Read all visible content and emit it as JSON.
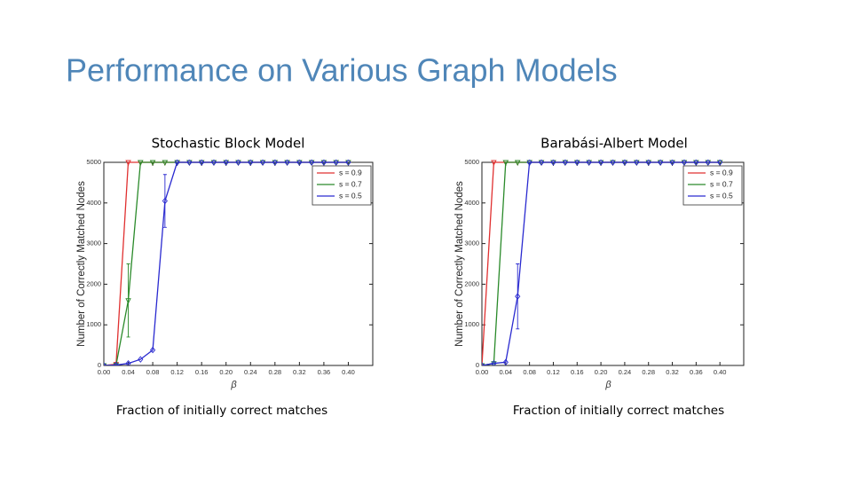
{
  "slide_title": "Performance on Various Graph Models",
  "chart_data": [
    {
      "type": "line",
      "title": "Stochastic Block Model",
      "caption": "Fraction of initially correct matches",
      "xlabel": "β",
      "ylabel": "Number of Correctly Matched Nodes",
      "x": [
        0,
        0.02,
        0.04,
        0.06,
        0.08,
        0.1,
        0.12,
        0.14,
        0.16,
        0.18,
        0.2,
        0.22,
        0.24,
        0.26,
        0.28,
        0.3,
        0.32,
        0.34,
        0.36,
        0.38,
        0.4
      ],
      "xlim": [
        0,
        0.44
      ],
      "ylim": [
        0,
        5000
      ],
      "xticks": [
        {
          "value": 0,
          "label": "0.00"
        },
        0.04,
        0.08,
        0.12,
        0.16,
        {
          "value": 0.2,
          "label": "0.20"
        },
        0.24,
        0.28,
        0.32,
        0.36,
        {
          "value": 0.4,
          "label": "0.40"
        }
      ],
      "yticks": [
        0,
        1000,
        2000,
        3000,
        4000,
        5000
      ],
      "legend": "upper right",
      "series": [
        {
          "name": "s = 0.9",
          "color": "#e03030",
          "marker": "triangle",
          "values": [
            0,
            30,
            5000,
            5000,
            5000,
            5000,
            5000,
            5000,
            5000,
            5000,
            5000,
            5000,
            5000,
            5000,
            5000,
            5000,
            5000,
            5000,
            5000,
            5000,
            5000
          ]
        },
        {
          "name": "s = 0.7",
          "color": "#2a8a2a",
          "marker": "triangle",
          "values": [
            0,
            10,
            1600,
            5000,
            5000,
            5000,
            5000,
            5000,
            5000,
            5000,
            5000,
            5000,
            5000,
            5000,
            5000,
            5000,
            5000,
            5000,
            5000,
            5000,
            5000
          ],
          "errors": [
            null,
            null,
            900,
            null,
            null,
            null,
            null,
            null,
            null,
            null,
            null,
            null,
            null,
            null,
            null,
            null,
            null,
            null,
            null,
            null,
            null
          ]
        },
        {
          "name": "s = 0.5",
          "color": "#2a2ad0",
          "marker": "diamond",
          "values": [
            0,
            10,
            50,
            150,
            380,
            4050,
            5000,
            5000,
            5000,
            5000,
            5000,
            5000,
            5000,
            5000,
            5000,
            5000,
            5000,
            5000,
            5000,
            5000,
            5000
          ],
          "errors": [
            null,
            null,
            null,
            null,
            null,
            650,
            null,
            null,
            null,
            null,
            null,
            null,
            null,
            null,
            null,
            null,
            null,
            null,
            null,
            null,
            null
          ]
        }
      ]
    },
    {
      "type": "line",
      "title": "Barabási-Albert Model",
      "caption": "Fraction of initially correct matches",
      "xlabel": "β",
      "ylabel": "Number of Correctly Matched Nodes",
      "x": [
        0,
        0.02,
        0.04,
        0.06,
        0.08,
        0.1,
        0.12,
        0.14,
        0.16,
        0.18,
        0.2,
        0.22,
        0.24,
        0.26,
        0.28,
        0.3,
        0.32,
        0.34,
        0.36,
        0.38,
        0.4
      ],
      "xlim": [
        0,
        0.44
      ],
      "ylim": [
        0,
        5000
      ],
      "xticks": [
        {
          "value": 0,
          "label": "0.00"
        },
        0.04,
        0.08,
        0.12,
        0.16,
        {
          "value": 0.2,
          "label": "0.20"
        },
        0.24,
        0.28,
        0.32,
        0.36,
        {
          "value": 0.4,
          "label": "0.40"
        }
      ],
      "yticks": [
        0,
        1000,
        2000,
        3000,
        4000,
        5000
      ],
      "legend": "upper right",
      "series": [
        {
          "name": "s = 0.9",
          "color": "#e03030",
          "marker": "triangle",
          "values": [
            0,
            5000,
            5000,
            5000,
            5000,
            5000,
            5000,
            5000,
            5000,
            5000,
            5000,
            5000,
            5000,
            5000,
            5000,
            5000,
            5000,
            5000,
            5000,
            5000,
            5000
          ]
        },
        {
          "name": "s = 0.7",
          "color": "#2a8a2a",
          "marker": "triangle",
          "values": [
            0,
            50,
            5000,
            5000,
            5000,
            5000,
            5000,
            5000,
            5000,
            5000,
            5000,
            5000,
            5000,
            5000,
            5000,
            5000,
            5000,
            5000,
            5000,
            5000,
            5000
          ]
        },
        {
          "name": "s = 0.5",
          "color": "#2a2ad0",
          "marker": "diamond",
          "values": [
            0,
            50,
            80,
            1700,
            5000,
            5000,
            5000,
            5000,
            5000,
            5000,
            5000,
            5000,
            5000,
            5000,
            5000,
            5000,
            5000,
            5000,
            5000,
            5000,
            5000
          ],
          "errors": [
            null,
            null,
            null,
            800,
            null,
            null,
            null,
            null,
            null,
            null,
            null,
            null,
            null,
            null,
            null,
            null,
            null,
            null,
            null,
            null,
            null
          ]
        }
      ]
    }
  ]
}
